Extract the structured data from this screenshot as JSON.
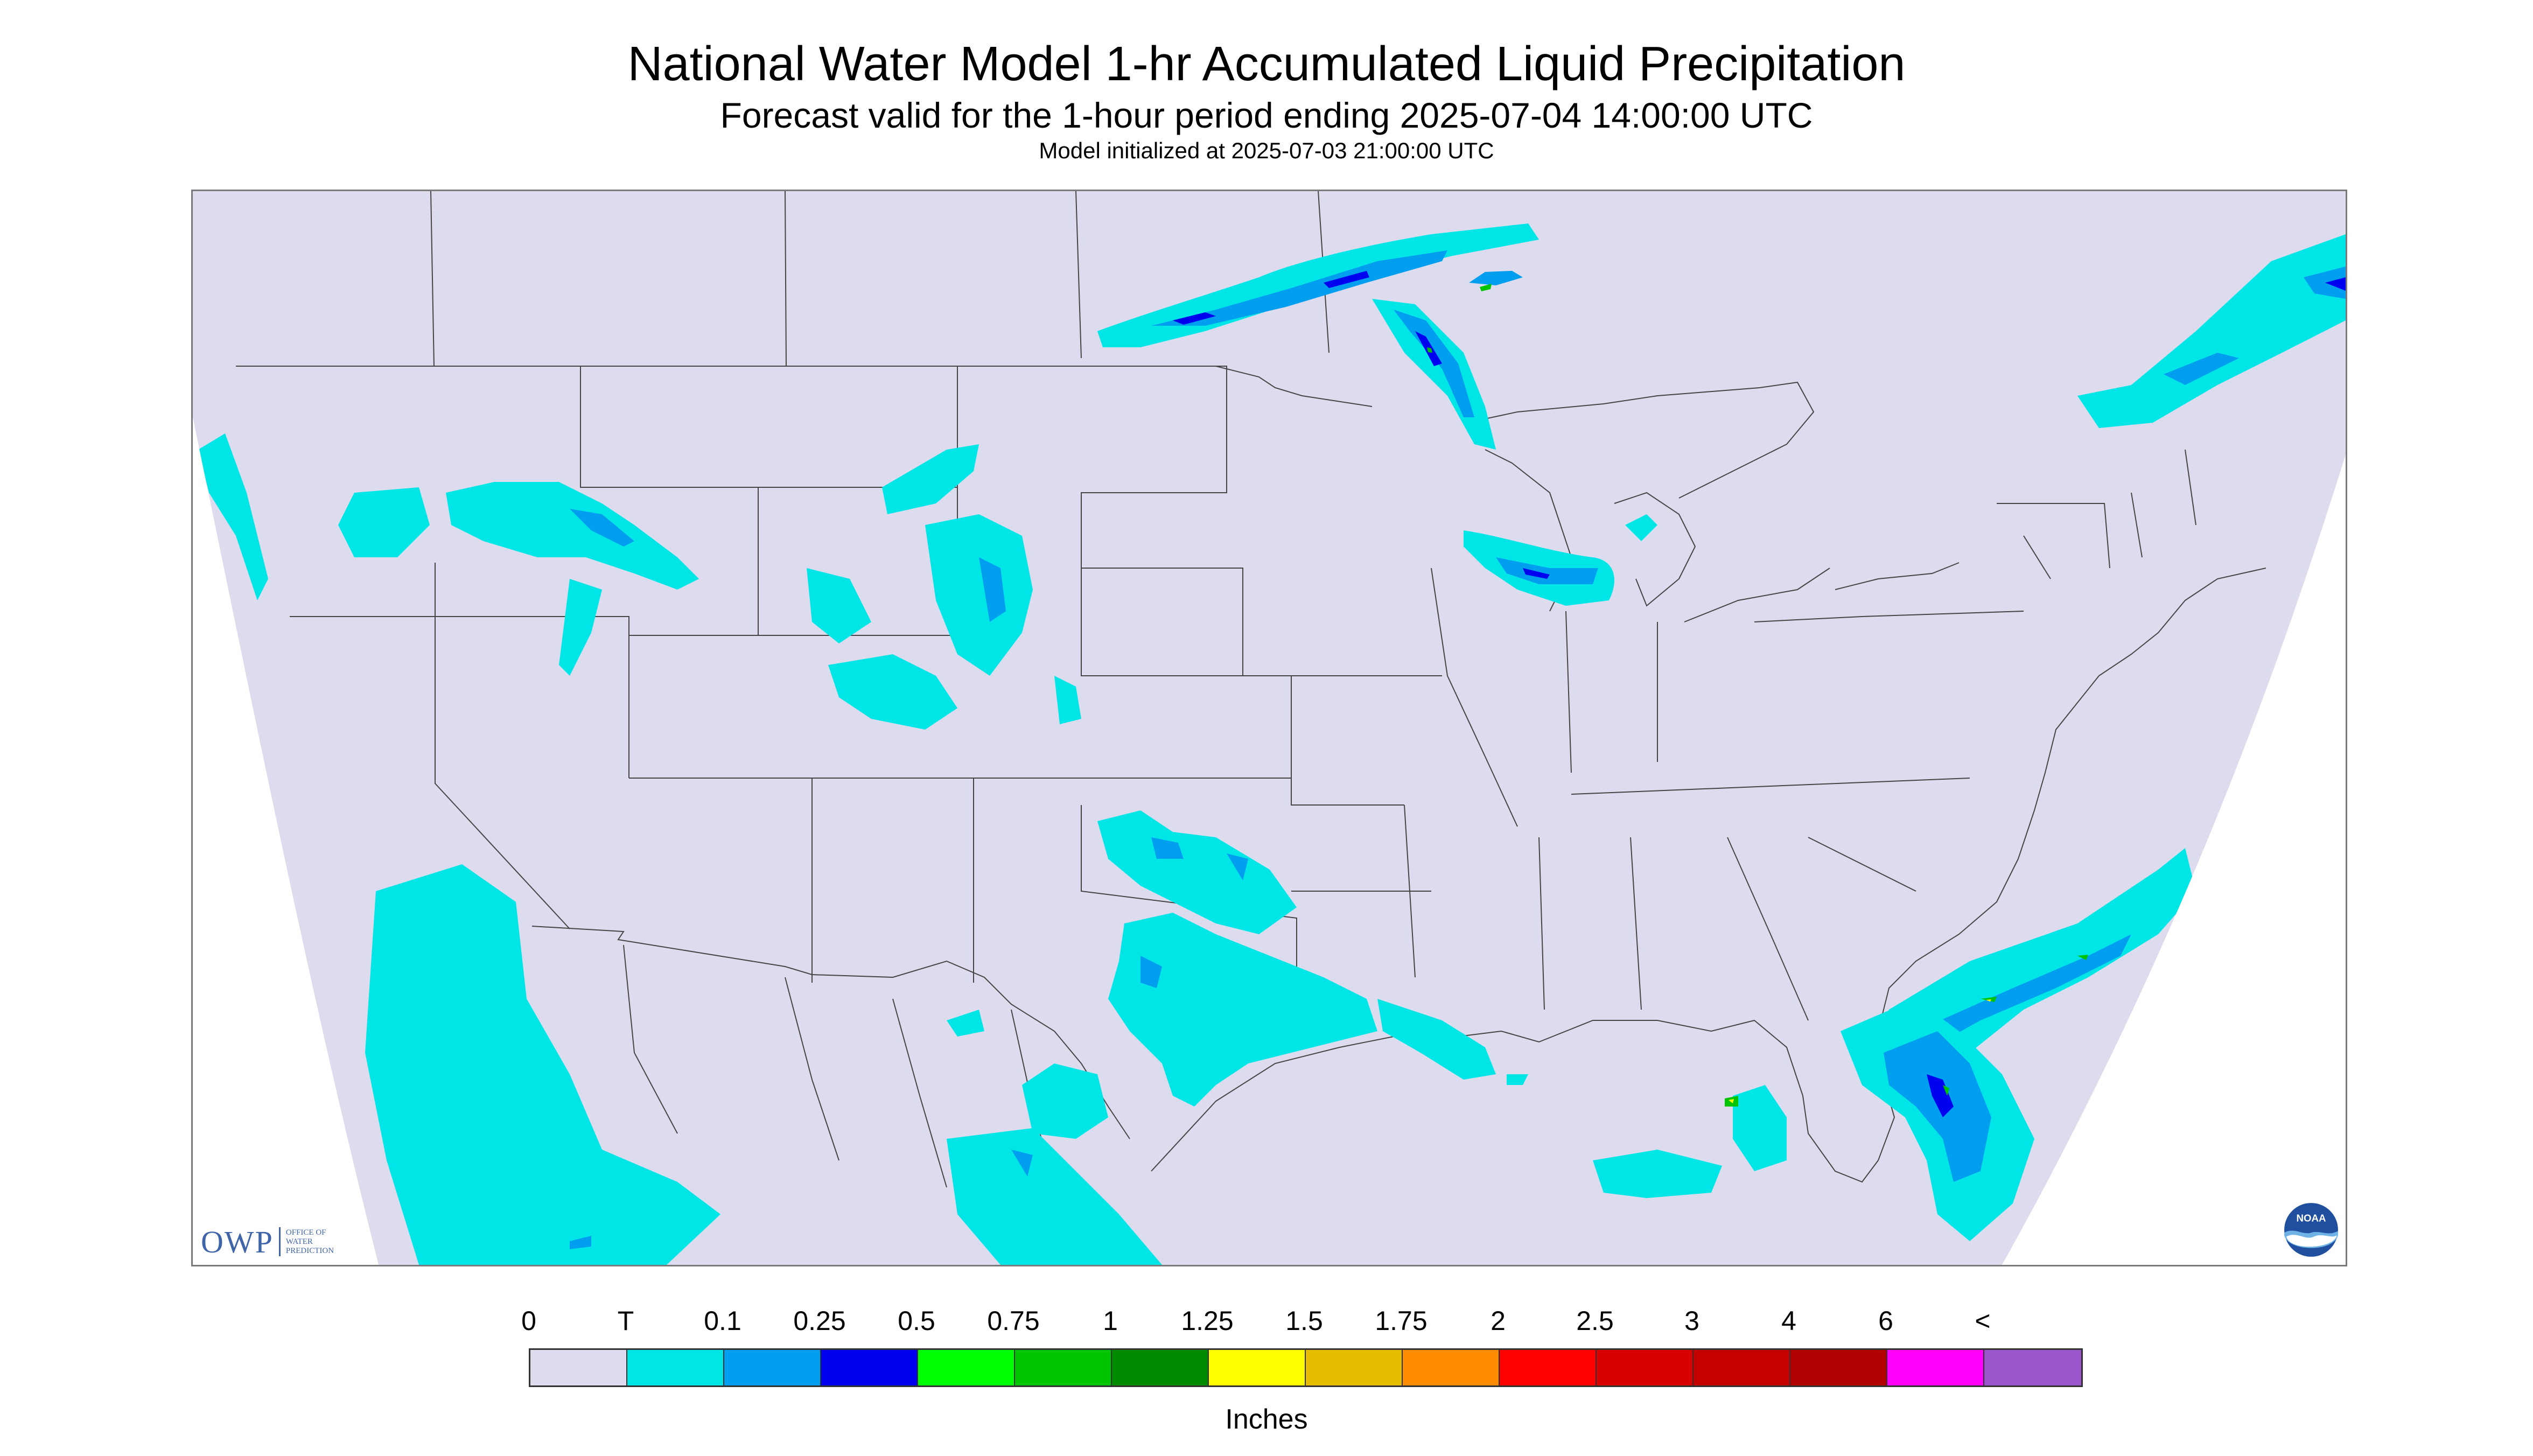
{
  "header": {
    "title": "National Water Model 1-hr Accumulated Liquid Precipitation",
    "subtitle": "Forecast valid for the 1-hour period ending 2025-07-04 14:00:00 UTC",
    "init_line": "Model initialized at 2025-07-03 21:00:00 UTC"
  },
  "logos": {
    "owp_abbr": "OWP",
    "owp_name": "Office of Water Prediction",
    "noaa": "NOAA"
  },
  "legend": {
    "tick_labels": [
      "0",
      "T",
      "0.1",
      "0.25",
      "0.5",
      "0.75",
      "1",
      "1.25",
      "1.5",
      "1.75",
      "2",
      "2.5",
      "3",
      "4",
      "6",
      "<"
    ],
    "colors": [
      "#dcdcee",
      "#00e6e6",
      "#009eee",
      "#0000f0",
      "#00ff00",
      "#00c400",
      "#008a00",
      "#ffff00",
      "#e6bd00",
      "#ff8c00",
      "#ff0000",
      "#d90000",
      "#c40000",
      "#b00000",
      "#ff00ff",
      "#9955cc"
    ],
    "units": "Inches"
  },
  "map": {
    "background_color": "#dcdcee",
    "outside_domain_color": "#ffffff",
    "precip_colors": {
      "trace": "#00e6e6",
      "light": "#009eee",
      "moderate": "#0000f0",
      "heavy": "#00c400",
      "very_heavy": "#ffff00"
    }
  }
}
